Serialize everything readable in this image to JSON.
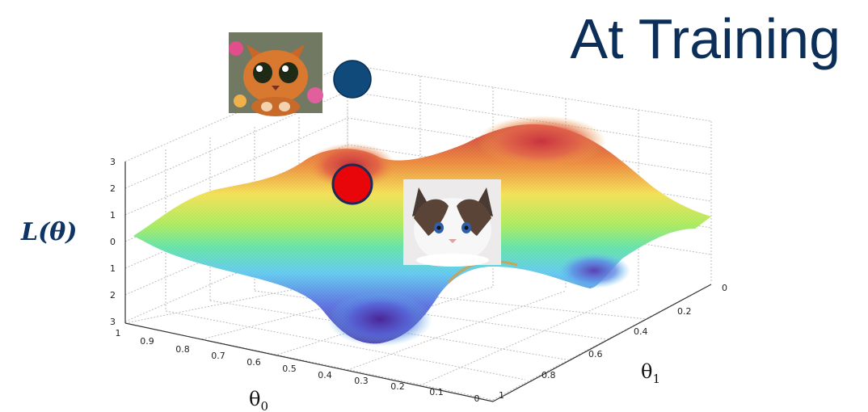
{
  "title": "At Training",
  "loss_label": "L(θ)",
  "axes": {
    "x_symbol": "θ",
    "x_subscript": "0",
    "y_symbol": "θ",
    "y_subscript": "1",
    "z_ticks": [
      "3",
      "2",
      "1",
      "0",
      "1",
      "2",
      "3"
    ],
    "theta0_ticks": [
      "1",
      "0.9",
      "0.8",
      "0.7",
      "0.6",
      "0.5",
      "0.4",
      "0.3",
      "0.2",
      "0.1",
      "0"
    ],
    "theta1_ticks": [
      "0",
      "0.2",
      "0.4",
      "0.6",
      "0.8",
      "1"
    ]
  },
  "markers": [
    {
      "name": "training-point",
      "color": "#0f4a7a"
    },
    {
      "name": "current-point",
      "color": "#e8060b"
    }
  ],
  "images": [
    {
      "name": "cartoon-cat-image",
      "subject": "cartoon orange cat"
    },
    {
      "name": "ragdoll-cat-image",
      "subject": "white and brown ragdoll cat"
    }
  ]
}
